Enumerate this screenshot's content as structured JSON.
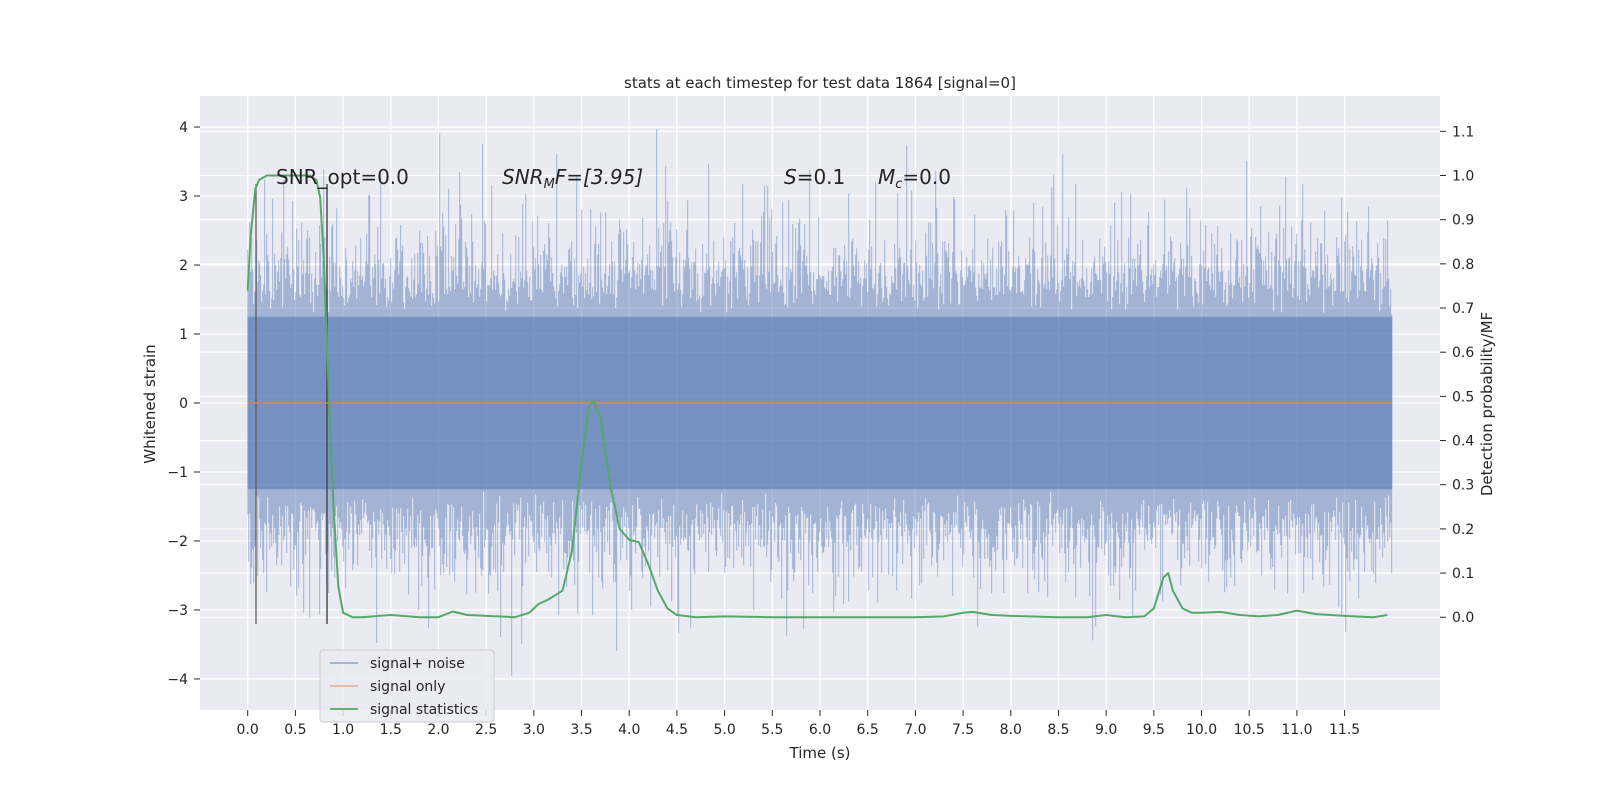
{
  "chart_data": {
    "type": "line",
    "title": "stats at each timestep for test data 1864 [signal=0]",
    "xlabel": "Time (s)",
    "ylabel": "Whitened strain",
    "ylabel_right": "Detection probability/MF",
    "xlim": [
      -0.5,
      12.5
    ],
    "ylim": [
      -4.45,
      4.45
    ],
    "ylim_right": [
      -0.21,
      1.18
    ],
    "x_ticks": [
      "0.0",
      "0.5",
      "1.0",
      "1.5",
      "2.0",
      "2.5",
      "3.0",
      "3.5",
      "4.0",
      "4.5",
      "5.0",
      "5.5",
      "6.0",
      "6.5",
      "7.0",
      "7.5",
      "8.0",
      "8.5",
      "9.0",
      "9.5",
      "10.0",
      "10.5",
      "11.0",
      "11.5"
    ],
    "y_ticks": [
      "4",
      "3",
      "2",
      "1",
      "0",
      "−1",
      "−2",
      "−3",
      "−4"
    ],
    "y_ticks_right": [
      "1.1",
      "1.0",
      "0.9",
      "0.8",
      "0.7",
      "0.6",
      "0.5",
      "0.4",
      "0.3",
      "0.2",
      "0.1",
      "0.0"
    ],
    "grid": true,
    "legend_position": "bottom-left",
    "annotations": {
      "snr_opt": "SNR_opt=0.0",
      "snr_mf_main": "SNR",
      "snr_mf_sub": "M",
      "snr_mf_rest": "F=[3.95]",
      "s_main": "S",
      "s_rest": "=0.1",
      "mc_main": "M",
      "mc_sub": "c",
      "mc_rest": "=0.0"
    },
    "series": [
      {
        "name": "signal+ noise",
        "axis": "left",
        "color": "#4c72b0",
        "description_type": "noise",
        "x_range": [
          0.0,
          12.0
        ],
        "amplitude_core": 1.25,
        "amplitude_max": 4.0
      },
      {
        "name": "signal only",
        "axis": "left",
        "color": "#dd8452",
        "x": [
          0.0,
          12.0
        ],
        "values": [
          0.0,
          0.0
        ]
      },
      {
        "name": "signal statistics",
        "axis": "right",
        "color": "#55a868",
        "x": [
          0.0,
          0.03,
          0.08,
          0.12,
          0.2,
          0.3,
          0.5,
          0.65,
          0.72,
          0.76,
          0.8,
          0.85,
          0.9,
          0.95,
          1.0,
          1.1,
          1.2,
          1.5,
          1.8,
          2.0,
          2.15,
          2.3,
          2.5,
          2.8,
          2.95,
          3.05,
          3.15,
          3.3,
          3.4,
          3.5,
          3.58,
          3.63,
          3.7,
          3.8,
          3.9,
          4.0,
          4.1,
          4.2,
          4.3,
          4.4,
          4.5,
          4.7,
          5.0,
          5.5,
          6.0,
          6.5,
          7.0,
          7.3,
          7.5,
          7.6,
          7.8,
          8.0,
          8.5,
          8.8,
          9.0,
          9.2,
          9.4,
          9.5,
          9.6,
          9.65,
          9.7,
          9.8,
          9.9,
          10.0,
          10.2,
          10.4,
          10.6,
          10.8,
          11.0,
          11.2,
          11.5,
          11.8,
          11.95
        ],
        "values": [
          0.74,
          0.86,
          0.97,
          0.99,
          1.0,
          1.0,
          1.0,
          1.0,
          0.99,
          0.95,
          0.8,
          0.5,
          0.25,
          0.07,
          0.01,
          0.0,
          0.0,
          0.005,
          0.0,
          0.0,
          0.013,
          0.005,
          0.003,
          0.0,
          0.01,
          0.03,
          0.04,
          0.06,
          0.15,
          0.35,
          0.48,
          0.49,
          0.45,
          0.3,
          0.2,
          0.175,
          0.17,
          0.12,
          0.06,
          0.02,
          0.005,
          0.0,
          0.002,
          0.0,
          0.0,
          0.0,
          0.0,
          0.002,
          0.01,
          0.012,
          0.005,
          0.003,
          0.0,
          0.0,
          0.005,
          0.0,
          0.002,
          0.02,
          0.09,
          0.1,
          0.06,
          0.02,
          0.01,
          0.01,
          0.012,
          0.005,
          0.002,
          0.005,
          0.015,
          0.007,
          0.003,
          0.0,
          0.005
        ]
      }
    ]
  }
}
